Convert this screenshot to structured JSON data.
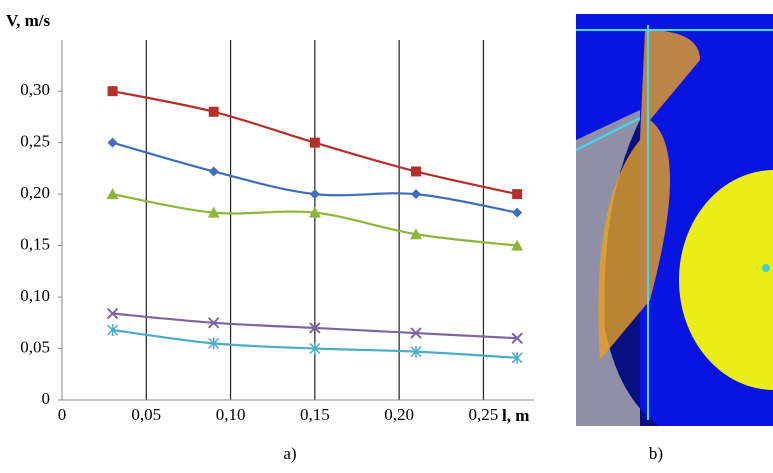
{
  "chart_data": {
    "type": "line",
    "y_label": "V, m/s",
    "x_label": "l, m",
    "x": [
      0.03,
      0.09,
      0.15,
      0.21,
      0.27
    ],
    "series": [
      {
        "color": "#b5302c",
        "marker": "square",
        "values": [
          0.3,
          0.28,
          0.25,
          0.222,
          0.2
        ]
      },
      {
        "color": "#3f6fba",
        "marker": "diamond",
        "values": [
          0.25,
          0.222,
          0.2,
          0.2,
          0.182
        ]
      },
      {
        "color": "#8db63c",
        "marker": "triangle",
        "values": [
          0.2,
          0.182,
          0.182,
          0.161,
          0.15
        ]
      },
      {
        "color": "#8064a2",
        "marker": "x",
        "values": [
          0.084,
          0.075,
          0.07,
          0.065,
          0.06
        ]
      },
      {
        "color": "#4bacc6",
        "marker": "star",
        "values": [
          0.068,
          0.055,
          0.05,
          0.047,
          0.041
        ]
      }
    ],
    "xlim": [
      0,
      0.28
    ],
    "xticks": [
      0,
      {
        "value": 0.05,
        "label": "0,05"
      },
      {
        "value": 0.1,
        "label": "0,10"
      },
      {
        "value": 0.15,
        "label": "0,15"
      },
      {
        "value": 0.2,
        "label": "0,20"
      },
      {
        "value": 0.25,
        "label": "0,25"
      }
    ],
    "ylim": [
      0,
      0.34
    ],
    "yticks": [
      0,
      {
        "value": 0.05,
        "label": "0,05"
      },
      {
        "value": 0.1,
        "label": "0,10"
      },
      {
        "value": 0.15,
        "label": "0,15"
      },
      {
        "value": 0.2,
        "label": "0,20"
      },
      {
        "value": 0.25,
        "label": "0,25"
      },
      {
        "value": 0.3,
        "label": "0,30"
      }
    ],
    "grid": true,
    "panel_labels": [
      "a)",
      "b)"
    ]
  }
}
